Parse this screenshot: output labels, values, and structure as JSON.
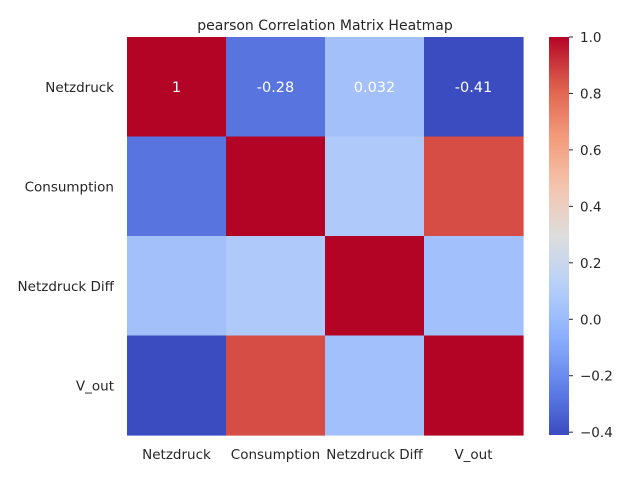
{
  "chart_data": {
    "type": "heatmap",
    "title": "pearson Correlation Matrix Heatmap",
    "row_labels": [
      "Netzdruck",
      "Consumption",
      "Netzdruck Diff",
      "V_out"
    ],
    "col_labels": [
      "Netzdruck",
      "Consumption",
      "Netzdruck Diff",
      "V_out"
    ],
    "values": [
      [
        1.0,
        -0.28,
        0.032,
        -0.41
      ],
      [
        -0.28,
        1.0,
        0.08,
        0.86
      ],
      [
        0.032,
        0.08,
        1.0,
        0.03
      ],
      [
        -0.41,
        0.86,
        0.03,
        1.0
      ]
    ],
    "annotated_cells": [
      {
        "row": 0,
        "col": 0,
        "text": "1"
      },
      {
        "row": 0,
        "col": 1,
        "text": "-0.28"
      },
      {
        "row": 0,
        "col": 2,
        "text": "0.032"
      },
      {
        "row": 0,
        "col": 3,
        "text": "-0.41"
      }
    ],
    "colormap": "coolwarm",
    "colorbar": {
      "range": [
        -0.41,
        1.0
      ],
      "ticks": [
        1.0,
        0.8,
        0.6,
        0.4,
        0.2,
        0.0,
        -0.2,
        -0.4
      ],
      "tick_labels": [
        "1.0",
        "0.8",
        "0.6",
        "0.4",
        "0.2",
        "0.0",
        "−0.2",
        "−0.4"
      ]
    }
  }
}
